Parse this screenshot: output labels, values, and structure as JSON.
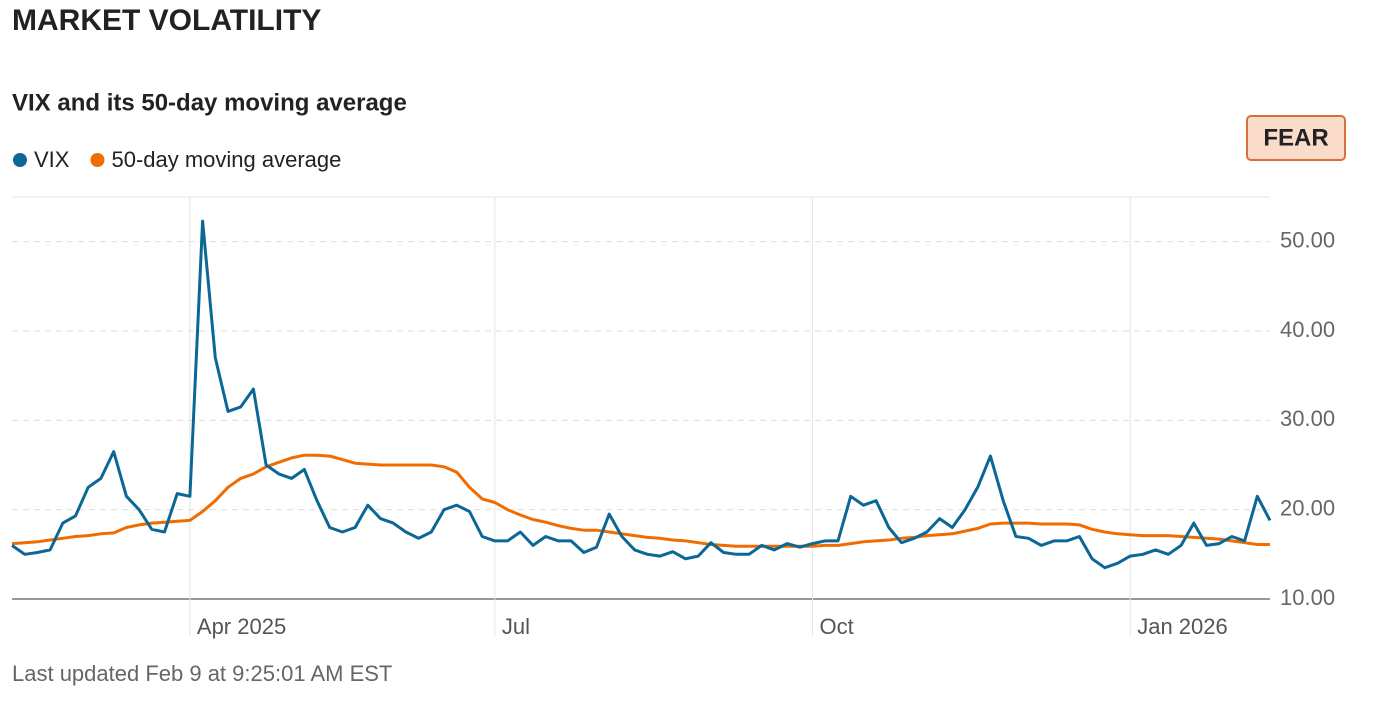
{
  "header": "MARKET VOLATILITY",
  "badge": "FEAR",
  "footnote": "Last updated Feb 9 at 9:25:01 AM EST",
  "chart_data": {
    "type": "line",
    "title": "VIX and its 50-day moving average",
    "categories": [
      null,
      null,
      null,
      null,
      null,
      null,
      null,
      null,
      null,
      null,
      null,
      null,
      null,
      null,
      "Apr 2025",
      null,
      null,
      null,
      null,
      null,
      null,
      null,
      null,
      null,
      null,
      null,
      null,
      null,
      null,
      null,
      null,
      null,
      null,
      null,
      null,
      null,
      null,
      null,
      "Jul",
      null,
      null,
      null,
      null,
      null,
      null,
      null,
      null,
      null,
      null,
      null,
      null,
      null,
      null,
      null,
      null,
      null,
      null,
      null,
      null,
      null,
      null,
      null,
      null,
      "Oct",
      null,
      null,
      null,
      null,
      null,
      null,
      null,
      null,
      null,
      null,
      null,
      null,
      null,
      null,
      null,
      null,
      null,
      null,
      null,
      null,
      null,
      null,
      null,
      null,
      "Jan 2026",
      null,
      null,
      null,
      null,
      null,
      null,
      null,
      null,
      null,
      null,
      null
    ],
    "series": [
      {
        "name": "VIX",
        "color": "#0b6796",
        "values": [
          16.0,
          15.0,
          15.2,
          15.5,
          18.5,
          19.3,
          22.5,
          23.5,
          26.5,
          21.5,
          20.0,
          17.8,
          17.5,
          21.8,
          21.5,
          52.3,
          37,
          31,
          31.5,
          33.5,
          25,
          24,
          23.5,
          24.5,
          21,
          18,
          17.5,
          18,
          20.5,
          19,
          18.5,
          17.5,
          16.8,
          17.5,
          20,
          20.5,
          19.8,
          17,
          16.5,
          16.5,
          17.5,
          16,
          17,
          16.5,
          16.5,
          15.2,
          15.8,
          19.5,
          17,
          15.5,
          15,
          14.8,
          15.3,
          14.5,
          14.8,
          16.3,
          15.2,
          15,
          15,
          16,
          15.5,
          16.2,
          15.8,
          16.2,
          16.5,
          16.5,
          21.5,
          20.5,
          21,
          18,
          16.3,
          16.8,
          17.5,
          19,
          18,
          20,
          22.5,
          26,
          21,
          17,
          16.8,
          16,
          16.5,
          16.5,
          17,
          14.5,
          13.5,
          14,
          14.8,
          15,
          15.5,
          15,
          16,
          18.5,
          16,
          16.2,
          17,
          16.5,
          21.5,
          18.8
        ]
      },
      {
        "name": "50-day moving average",
        "color": "#f06c00",
        "values": [
          16.2,
          16.3,
          16.4,
          16.6,
          16.8,
          17.0,
          17.1,
          17.3,
          17.4,
          18.0,
          18.3,
          18.5,
          18.6,
          18.7,
          18.8,
          19.8,
          21,
          22.5,
          23.5,
          24,
          24.8,
          25.3,
          25.8,
          26.1,
          26.1,
          26,
          25.6,
          25.2,
          25.1,
          25,
          25,
          25,
          25,
          25,
          24.8,
          24.2,
          22.5,
          21.2,
          20.8,
          20,
          19.4,
          18.9,
          18.6,
          18.2,
          17.9,
          17.7,
          17.7,
          17.5,
          17.3,
          17.1,
          16.9,
          16.8,
          16.6,
          16.5,
          16.3,
          16.1,
          16,
          15.9,
          15.9,
          15.9,
          15.9,
          15.9,
          15.9,
          15.9,
          16,
          16,
          16.2,
          16.4,
          16.5,
          16.6,
          16.8,
          16.9,
          17.1,
          17.2,
          17.3,
          17.6,
          17.9,
          18.4,
          18.5,
          18.5,
          18.5,
          18.4,
          18.4,
          18.4,
          18.3,
          17.8,
          17.5,
          17.3,
          17.2,
          17.1,
          17.1,
          17.1,
          17,
          16.9,
          16.8,
          16.7,
          16.5,
          16.3,
          16.1,
          16.1
        ]
      }
    ],
    "ylim": [
      10,
      55
    ],
    "yticks": [
      {
        "value": 10,
        "label": "10.00"
      },
      {
        "value": 20,
        "label": "20.00"
      },
      {
        "value": 30,
        "label": "30.00"
      },
      {
        "value": 40,
        "label": "40.00"
      },
      {
        "value": 50,
        "label": "50.00"
      }
    ],
    "grid": true,
    "legend": "top-left"
  }
}
